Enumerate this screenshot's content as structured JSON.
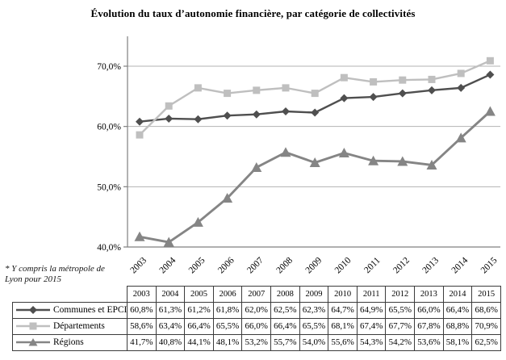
{
  "title": "Évolution du taux d’autonomie financière, par catégorie de collectivités",
  "footnote": "* Y compris la métropole de Lyon pour 2015",
  "chart_data": {
    "type": "line",
    "categories": [
      "2003",
      "2004",
      "2005",
      "2006",
      "2007",
      "2008",
      "2009",
      "2010",
      "2011",
      "2012",
      "2013",
      "2014",
      "2015"
    ],
    "series": [
      {
        "name": "Communes et EPCI*",
        "marker": "diamond",
        "color": "#4f4f4f",
        "values": [
          60.8,
          61.3,
          61.2,
          61.8,
          62.0,
          62.5,
          62.3,
          64.7,
          64.9,
          65.5,
          66.0,
          66.4,
          68.6
        ]
      },
      {
        "name": "Départements",
        "marker": "square",
        "color": "#bfbfbf",
        "values": [
          58.6,
          63.4,
          66.4,
          65.5,
          66.0,
          66.4,
          65.5,
          68.1,
          67.4,
          67.7,
          67.8,
          68.8,
          70.9
        ]
      },
      {
        "name": "Régions",
        "marker": "triangle",
        "color": "#858585",
        "values": [
          41.7,
          40.8,
          44.1,
          48.1,
          53.2,
          55.7,
          54.0,
          55.6,
          54.3,
          54.2,
          53.6,
          58.1,
          62.5
        ]
      }
    ],
    "ylim": [
      40,
      75
    ],
    "yticks": [
      {
        "v": 40,
        "label": "40,0%"
      },
      {
        "v": 50,
        "label": "50,0%"
      },
      {
        "v": 60,
        "label": "60,0%"
      },
      {
        "v": 70,
        "label": "70,0%"
      }
    ],
    "grid": true,
    "legend_position": "table-left",
    "value_format": "comma-decimal-percent"
  },
  "colors": {
    "gridline": "#b3b3b3",
    "axis": "#808080",
    "table_border": "#3c3c3c",
    "text": "#000000"
  }
}
